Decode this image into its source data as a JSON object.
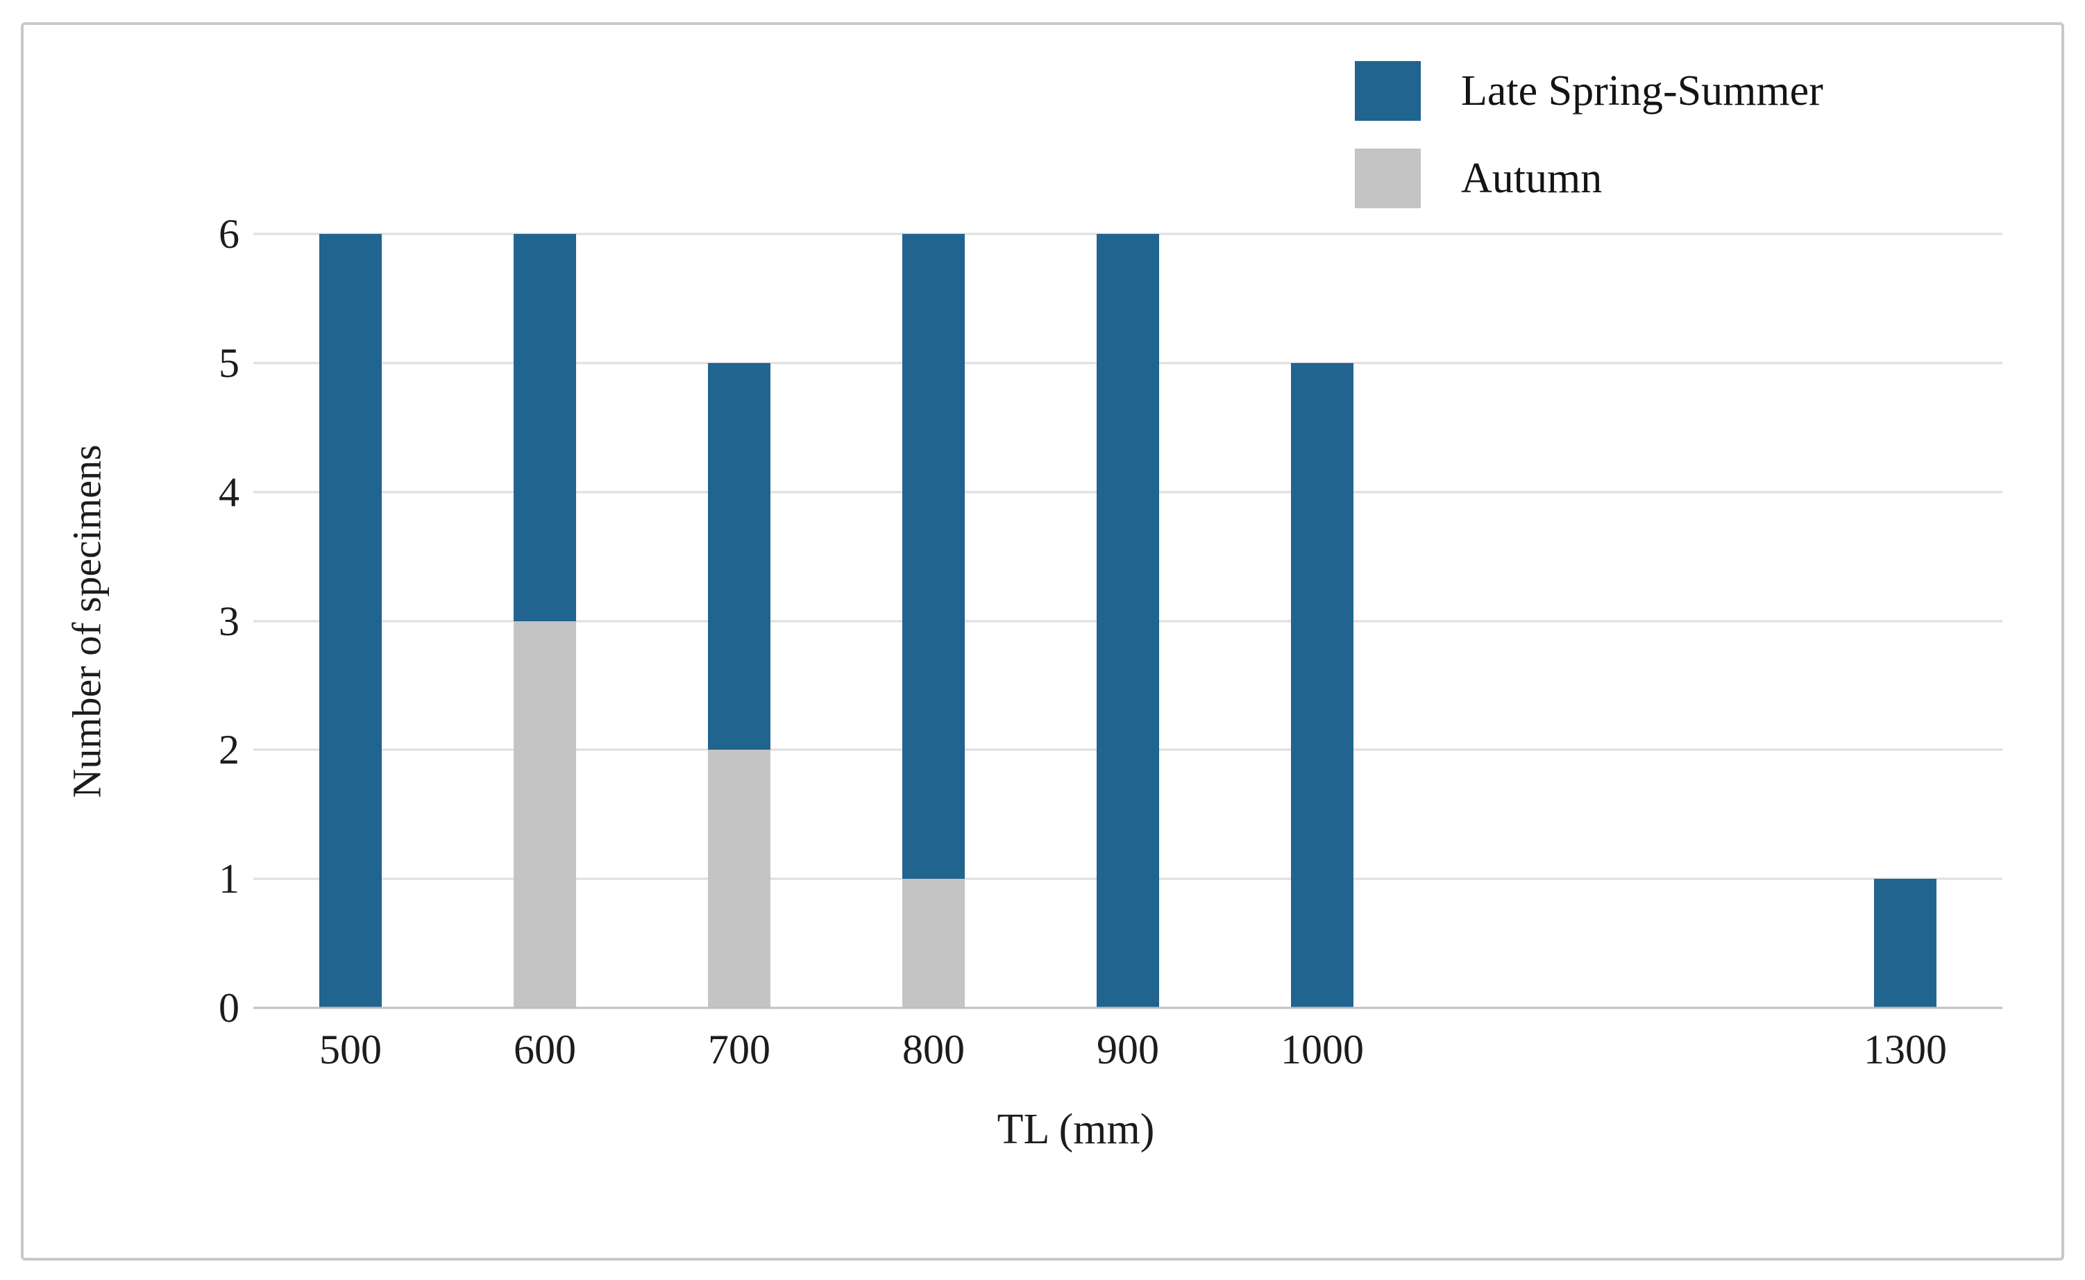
{
  "chart_data": {
    "type": "bar",
    "stacked": true,
    "title": "",
    "xlabel": "TL (mm)",
    "ylabel": "Number of specimens",
    "categories": [
      500,
      600,
      700,
      800,
      900,
      1000,
      1300
    ],
    "series": [
      {
        "name": "Late Spring-Summer",
        "color": "#21648f",
        "values": [
          6,
          3,
          3,
          5,
          6,
          5,
          1
        ]
      },
      {
        "name": "Autumn",
        "color": "#c4c4c4",
        "values": [
          0,
          3,
          2,
          1,
          0,
          0,
          0
        ]
      }
    ],
    "stack_order_bottom_to_top": [
      "Autumn",
      "Late Spring-Summer"
    ],
    "totals_per_category": [
      6,
      6,
      5,
      6,
      6,
      5,
      1
    ],
    "ylim": [
      0,
      6
    ],
    "yticks": [
      0,
      1,
      2,
      3,
      4,
      5,
      6
    ],
    "xlim": [
      450,
      1350
    ],
    "grid": true,
    "legend_position": "top-right"
  },
  "colors": {
    "bar_blue": "#21648f",
    "bar_gray": "#c4c4c4",
    "gridline": "#dedede",
    "axis_baseline": "#bfbfbf",
    "frame_border": "#c9c9c9",
    "text": "#1c1c1c",
    "background": "#ffffff"
  }
}
